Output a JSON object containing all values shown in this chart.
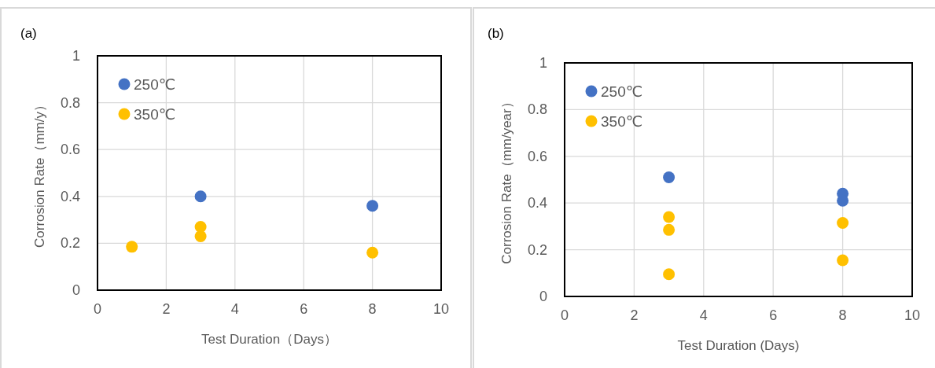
{
  "chart_data": [
    {
      "type": "scatter",
      "title": "(a)",
      "xlabel": "Test Duration（Days）",
      "ylabel": "Corrosion Rate（mm/y）",
      "xlim": [
        0,
        10
      ],
      "xticks": [
        0,
        2,
        4,
        6,
        8,
        10
      ],
      "ylim": [
        0,
        1
      ],
      "yticks": [
        0,
        0.2,
        0.4,
        0.6,
        0.8,
        1
      ],
      "grid": true,
      "legend": "top left",
      "marker": "circle",
      "series": [
        {
          "name": "250℃",
          "color": "#4472c4",
          "x": [
            3,
            8
          ],
          "values": [
            0.4,
            0.36
          ]
        },
        {
          "name": "350℃",
          "color": "#ffc000",
          "x": [
            1,
            3,
            3,
            8
          ],
          "values": [
            0.185,
            0.27,
            0.23,
            0.16
          ]
        }
      ]
    },
    {
      "type": "scatter",
      "title": "(b)",
      "xlabel": "Test Duration (Days)",
      "ylabel": "Corrosion Rate（mm/year）",
      "xlim": [
        0,
        10
      ],
      "xticks": [
        0,
        2,
        4,
        6,
        8,
        10
      ],
      "ylim": [
        0,
        1
      ],
      "yticks": [
        0,
        0.2,
        0.4,
        0.6,
        0.8,
        1
      ],
      "grid": true,
      "legend": "top left",
      "marker": "circle",
      "series": [
        {
          "name": "250℃",
          "color": "#4472c4",
          "x": [
            3,
            8,
            8
          ],
          "values": [
            0.51,
            0.44,
            0.41
          ]
        },
        {
          "name": "350℃",
          "color": "#ffc000",
          "x": [
            3,
            3,
            3,
            8,
            8
          ],
          "values": [
            0.34,
            0.285,
            0.095,
            0.315,
            0.155
          ]
        }
      ]
    }
  ]
}
